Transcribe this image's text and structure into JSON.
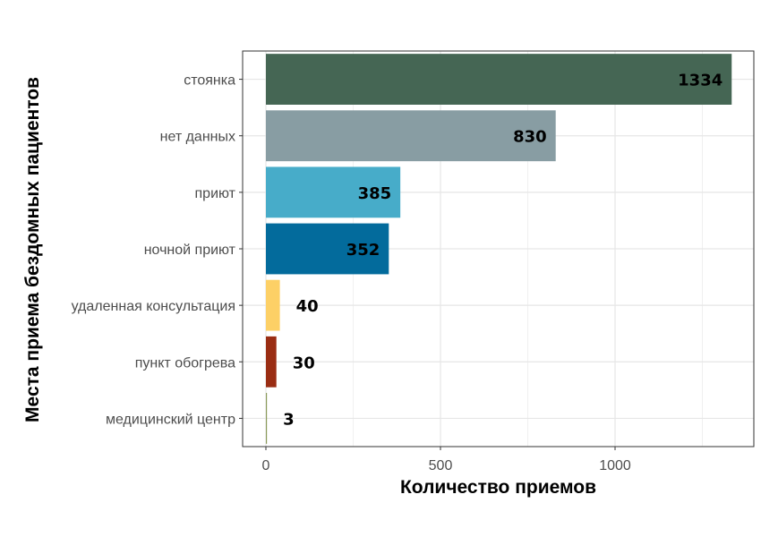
{
  "chart_data": {
    "type": "bar",
    "orientation": "horizontal",
    "xlabel": "Количество приемов",
    "ylabel": "Места приема бездомных пациентов",
    "xlim": [
      0,
      1400
    ],
    "x_ticks": [
      0,
      500,
      1000
    ],
    "grid": true,
    "legend": "none",
    "categories": [
      "стоянка",
      "нет данных",
      "приют",
      "ночной приют",
      "удаленная консультация",
      "пункт обогрева",
      "медицинский центр"
    ],
    "values": [
      1334,
      830,
      385,
      352,
      40,
      30,
      3
    ],
    "value_labels": [
      "1334",
      "830",
      "385",
      "352",
      "40",
      "30",
      "3"
    ],
    "colors": [
      "#456654",
      "#889da3",
      "#47acc9",
      "#036b9c",
      "#fdd066",
      "#9a2d13",
      "#8a9a5a"
    ]
  }
}
